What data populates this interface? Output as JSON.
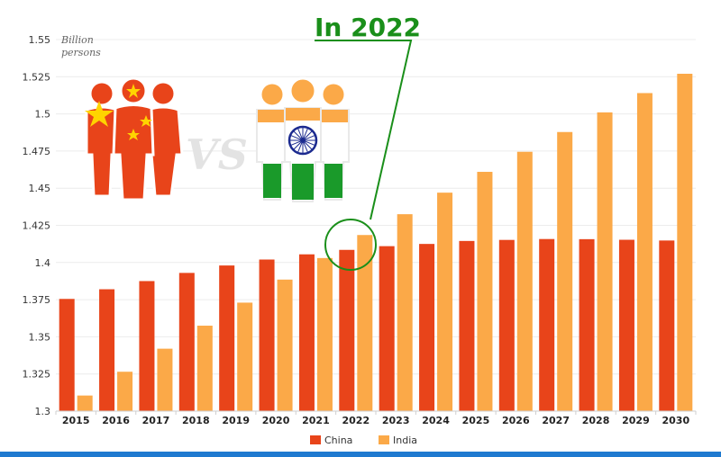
{
  "chart_data": {
    "type": "bar",
    "ylabel": "Billion persons",
    "ylim": [
      1.3,
      1.55
    ],
    "yticks": [
      "1.3",
      "1.325",
      "1.35",
      "1.375",
      "1.4",
      "1.425",
      "1.45",
      "1.475",
      "1.5",
      "1.525",
      "1.55"
    ],
    "categories": [
      "2015",
      "2016",
      "2017",
      "2018",
      "2019",
      "2020",
      "2021",
      "2022",
      "2023",
      "2024",
      "2025",
      "2026",
      "2027",
      "2028",
      "2029",
      "2030"
    ],
    "series": [
      {
        "name": "China",
        "color": "#e8441a",
        "values": [
          1.3755,
          1.382,
          1.3875,
          1.393,
          1.398,
          1.402,
          1.4055,
          1.4085,
          1.411,
          1.4125,
          1.4145,
          1.4152,
          1.4158,
          1.4157,
          1.4153,
          1.4148
        ]
      },
      {
        "name": "India",
        "color": "#fba948",
        "values": [
          1.3105,
          1.3265,
          1.342,
          1.3575,
          1.373,
          1.3885,
          1.403,
          1.4185,
          1.4325,
          1.447,
          1.461,
          1.4745,
          1.4878,
          1.501,
          1.514,
          1.527
        ]
      }
    ],
    "annotation": {
      "text": "In 2022",
      "category": "2022",
      "color": "#1a8f1a"
    },
    "grid": true,
    "legend": "bottom-center"
  }
}
